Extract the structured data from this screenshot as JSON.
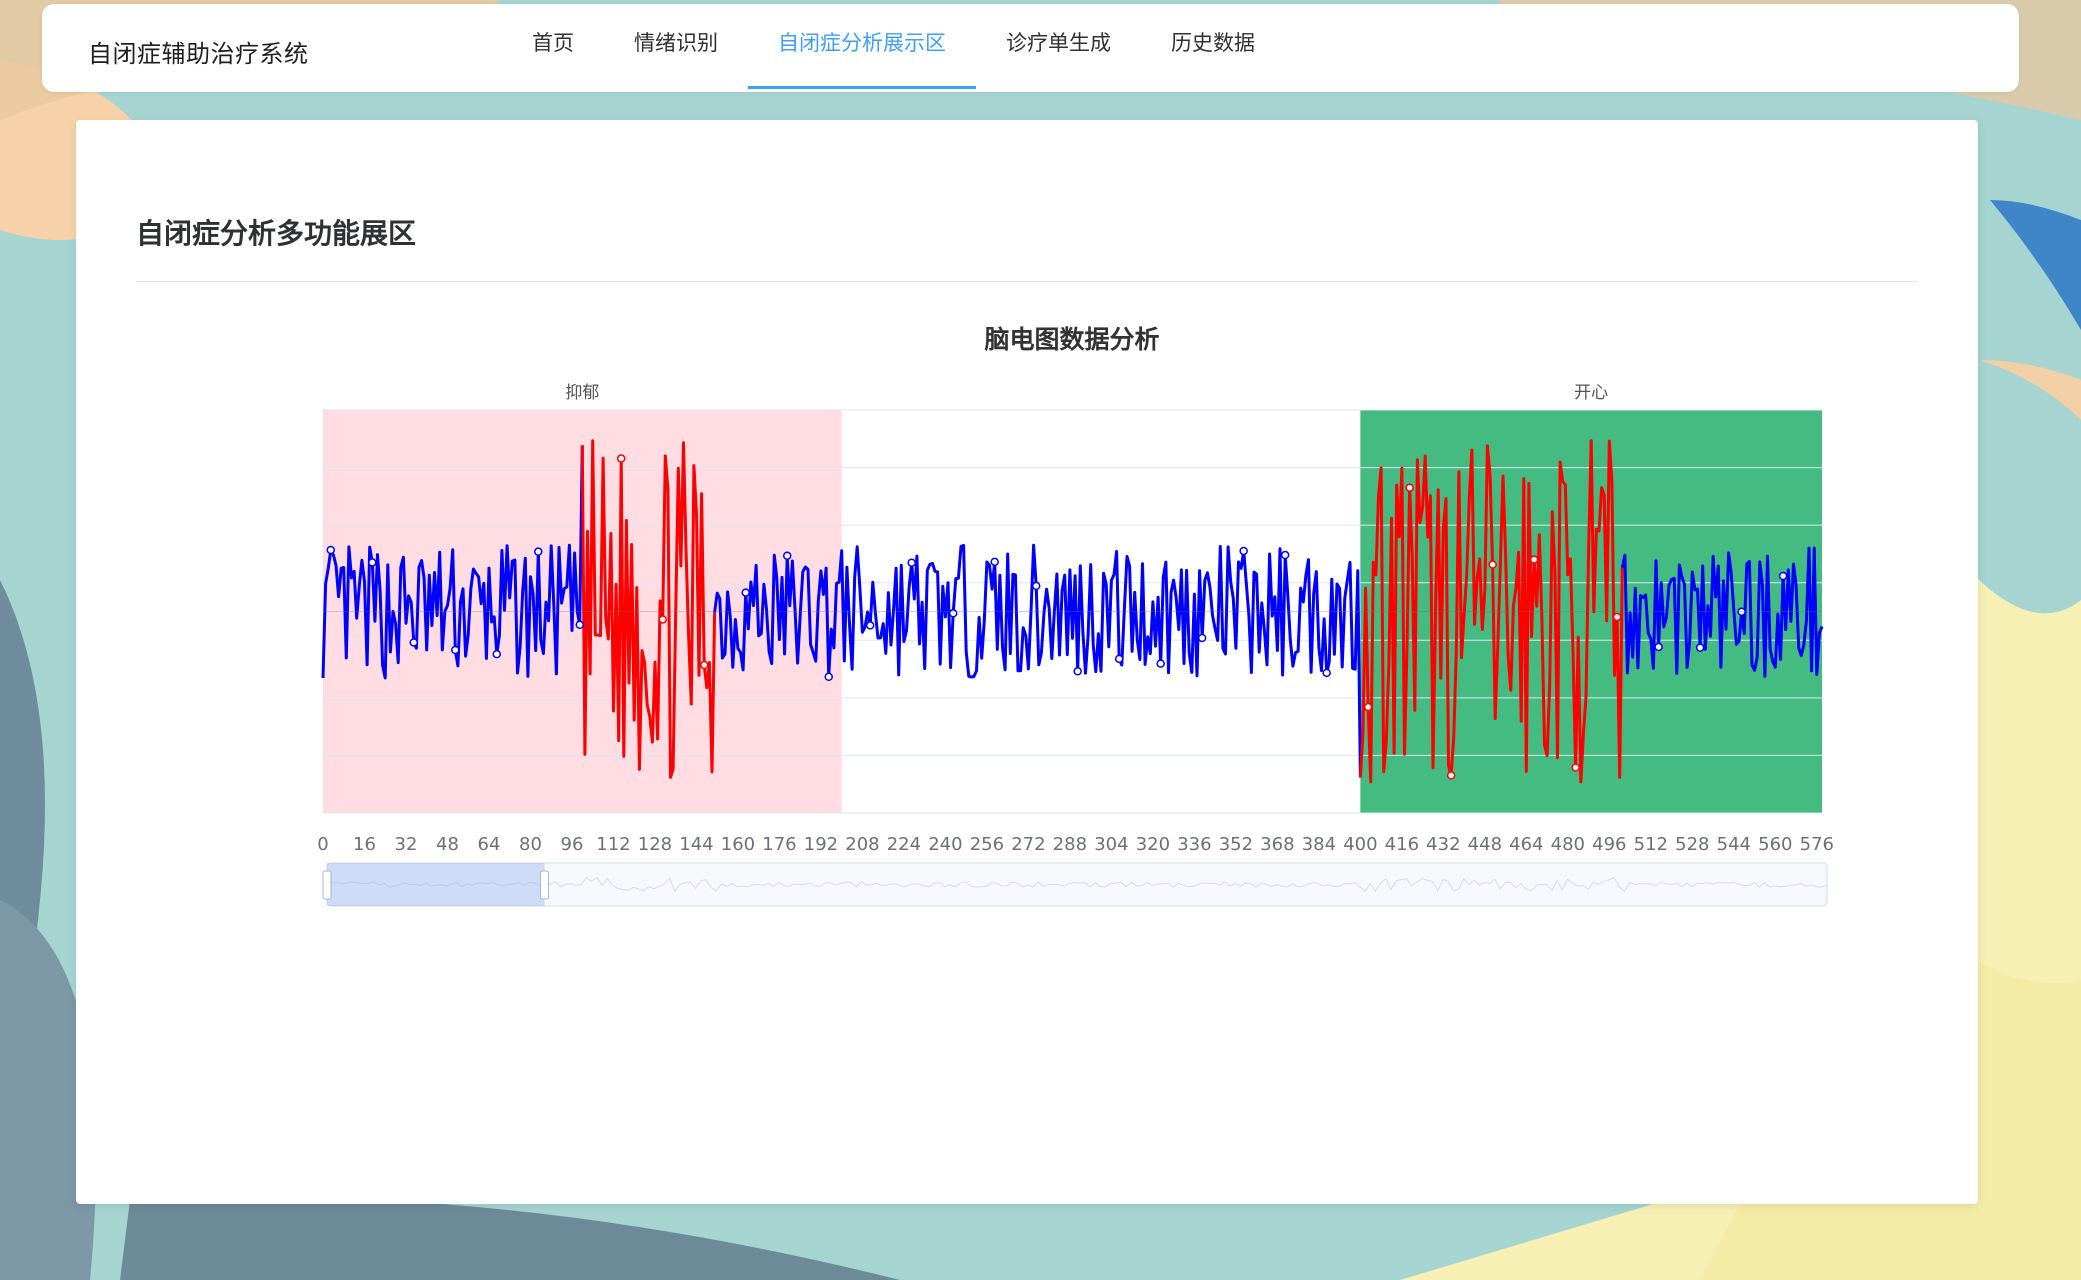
{
  "app": {
    "title": "自闭症辅助治疗系统"
  },
  "nav": {
    "items": [
      {
        "id": "home",
        "label": "首页",
        "active": false
      },
      {
        "id": "emotion",
        "label": "情绪识别",
        "active": false
      },
      {
        "id": "analysis",
        "label": "自闭症分析展示区",
        "active": true
      },
      {
        "id": "report",
        "label": "诊疗单生成",
        "active": false
      },
      {
        "id": "history",
        "label": "历史数据",
        "active": false
      }
    ],
    "accent_color": "#409eff"
  },
  "panel": {
    "title": "自闭症分析多功能展区"
  },
  "chart_data": {
    "type": "line",
    "title": "脑电图数据分析",
    "x_ticks": [
      0,
      16,
      32,
      48,
      64,
      80,
      96,
      112,
      128,
      144,
      160,
      176,
      192,
      208,
      224,
      240,
      256,
      272,
      288,
      304,
      320,
      336,
      352,
      368,
      384,
      400,
      416,
      432,
      448,
      464,
      480,
      496,
      512,
      528,
      544,
      560,
      576
    ],
    "x_range": [
      0,
      578
    ],
    "y_range": [
      -1,
      1
    ],
    "grid": true,
    "regions": [
      {
        "label": "抑郁",
        "x_start": 0,
        "x_end": 200,
        "color": "#ffdde2"
      },
      {
        "label": "开心",
        "x_start": 400,
        "x_end": 578,
        "color": "#44bb80"
      }
    ],
    "highlight_segments": [
      {
        "x_start": 100,
        "x_end": 150,
        "color": "#ff0000"
      },
      {
        "x_start": 400,
        "x_end": 500,
        "color": "#ff0000"
      }
    ],
    "series": [
      {
        "base_color": "#0000ff",
        "normal_amplitude": 0.33,
        "high_amplitude": 0.85
      }
    ],
    "data_zoom": {
      "start_percent": 0,
      "end_percent": 14.5
    }
  }
}
